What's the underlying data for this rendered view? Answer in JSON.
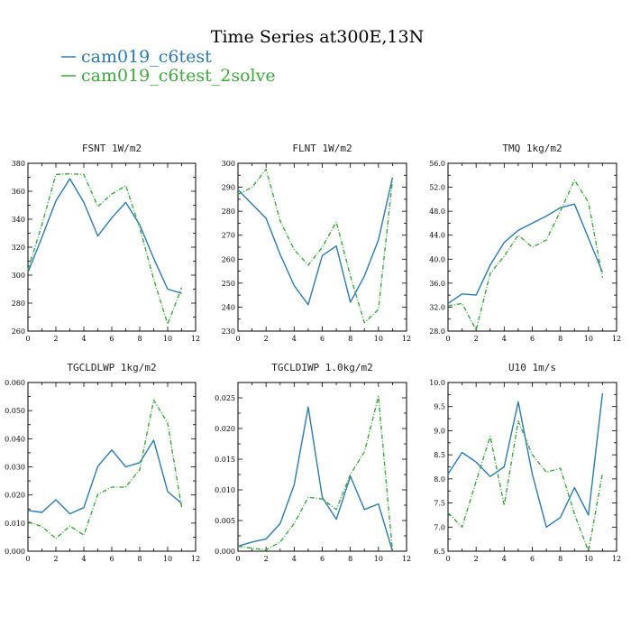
{
  "figure": {
    "title": "Time Series at300E,13N",
    "legend": [
      {
        "name": "cam019_c6test",
        "color": "#2a7ab0",
        "dash": "solid"
      },
      {
        "name": "cam019_c6test_2solve",
        "color": "#3ea83e",
        "dash": "dashdot"
      }
    ]
  },
  "chart_data": [
    {
      "type": "line",
      "title": "FSNT  1W/m2",
      "xlim": [
        0,
        12
      ],
      "ylim": [
        260,
        380
      ],
      "xticks": [
        "0",
        "2",
        "4",
        "6",
        "8",
        "10",
        "12"
      ],
      "yticks": [
        "260",
        "280",
        "300",
        "320",
        "340",
        "360",
        "380"
      ],
      "x": [
        0,
        1,
        2,
        3,
        4,
        5,
        6,
        7,
        8,
        9,
        10,
        11
      ],
      "series": [
        {
          "name": "cam019_c6test",
          "values": [
            302,
            327,
            353,
            369,
            352,
            328,
            341,
            352,
            336,
            312,
            290,
            287
          ]
        },
        {
          "name": "cam019_c6test_2solve",
          "values": [
            304,
            336,
            372,
            372.5,
            372,
            349,
            358,
            364,
            334,
            297,
            265,
            291
          ]
        }
      ]
    },
    {
      "type": "line",
      "title": "FLNT  1W/m2",
      "xlim": [
        0,
        12
      ],
      "ylim": [
        230,
        300
      ],
      "xticks": [
        "0",
        "2",
        "4",
        "6",
        "8",
        "10",
        "12"
      ],
      "yticks": [
        "230",
        "240",
        "250",
        "260",
        "270",
        "280",
        "290",
        "300"
      ],
      "x": [
        0,
        1,
        2,
        3,
        4,
        5,
        6,
        7,
        8,
        9,
        10,
        11
      ],
      "series": [
        {
          "name": "cam019_c6test",
          "values": [
            289,
            283,
            277,
            262,
            249,
            241,
            261.5,
            265.5,
            242,
            253,
            268,
            294
          ]
        },
        {
          "name": "cam019_c6test_2solve",
          "values": [
            287,
            290,
            297.5,
            276,
            264,
            257.5,
            265,
            275.5,
            253,
            233.5,
            239,
            293
          ]
        }
      ]
    },
    {
      "type": "line",
      "title": "TMQ  1kg/m2",
      "xlim": [
        0,
        12
      ],
      "ylim": [
        28,
        56
      ],
      "xticks": [
        "0",
        "2",
        "4",
        "6",
        "8",
        "10",
        "12"
      ],
      "yticks": [
        "28.0",
        "32.0",
        "36.0",
        "40.0",
        "44.0",
        "48.0",
        "52.0",
        "56.0"
      ],
      "x": [
        0,
        1,
        2,
        3,
        4,
        5,
        6,
        7,
        8,
        9,
        10,
        11
      ],
      "series": [
        {
          "name": "cam019_c6test",
          "values": [
            32.6,
            34.2,
            34.0,
            39.0,
            42.8,
            44.8,
            46.0,
            47.2,
            48.6,
            49.2,
            43.5,
            37.8
          ]
        },
        {
          "name": "cam019_c6test_2solve",
          "values": [
            32.2,
            32.6,
            28.2,
            37.6,
            40.5,
            44.0,
            42.0,
            43.2,
            48.0,
            53.2,
            49.5,
            36.9
          ]
        }
      ]
    },
    {
      "type": "line",
      "title": "TGCLDLWP  1kg/m2",
      "xlim": [
        0,
        12
      ],
      "ylim": [
        0,
        0.06
      ],
      "xticks": [
        "0",
        "2",
        "4",
        "6",
        "8",
        "10",
        "12"
      ],
      "yticks": [
        "0.000",
        "0.010",
        "0.020",
        "0.030",
        "0.040",
        "0.050",
        "0.060"
      ],
      "x": [
        0,
        1,
        2,
        3,
        4,
        5,
        6,
        7,
        8,
        9,
        10,
        11
      ],
      "series": [
        {
          "name": "cam019_c6test",
          "values": [
            0.0145,
            0.0138,
            0.0183,
            0.0133,
            0.0155,
            0.0302,
            0.036,
            0.03,
            0.0315,
            0.0395,
            0.0212,
            0.017
          ]
        },
        {
          "name": "cam019_c6test_2solve",
          "values": [
            0.0105,
            0.0088,
            0.0045,
            0.009,
            0.0057,
            0.0202,
            0.0228,
            0.0228,
            0.029,
            0.0538,
            0.0455,
            0.0155
          ]
        }
      ]
    },
    {
      "type": "line",
      "title": "TGCLDIWP  1.0kg/m2",
      "xlim": [
        0,
        12
      ],
      "ylim": [
        0,
        0.0275
      ],
      "xticks": [
        "0",
        "2",
        "4",
        "6",
        "8",
        "10",
        "12"
      ],
      "yticks": [
        "0.000",
        "0.005",
        "0.010",
        "0.015",
        "0.020",
        "0.025"
      ],
      "x": [
        0,
        1,
        2,
        3,
        4,
        5,
        6,
        7,
        8,
        9,
        10,
        11
      ],
      "series": [
        {
          "name": "cam019_c6test",
          "values": [
            0.0008,
            0.0015,
            0.002,
            0.0045,
            0.0108,
            0.0235,
            0.0088,
            0.0052,
            0.0122,
            0.0068,
            0.0077,
            0.0
          ]
        },
        {
          "name": "cam019_c6test_2solve",
          "values": [
            0.0008,
            0.0005,
            0.0002,
            0.0015,
            0.0045,
            0.0088,
            0.0085,
            0.0068,
            0.0125,
            0.0162,
            0.0252,
            0.0
          ]
        }
      ]
    },
    {
      "type": "line",
      "title": "U10  1m/s",
      "xlim": [
        0,
        12
      ],
      "ylim": [
        6.5,
        10.0
      ],
      "xticks": [
        "0",
        "2",
        "4",
        "6",
        "8",
        "10",
        "12"
      ],
      "yticks": [
        "6.5",
        "7.0",
        "7.5",
        "8.0",
        "8.5",
        "9.0",
        "9.5",
        "10.0"
      ],
      "x": [
        0,
        1,
        2,
        3,
        4,
        5,
        6,
        7,
        8,
        9,
        10,
        11
      ],
      "series": [
        {
          "name": "cam019_c6test",
          "values": [
            8.1,
            8.55,
            8.35,
            8.05,
            8.25,
            9.6,
            8.1,
            7.0,
            7.2,
            7.82,
            7.25,
            9.78
          ]
        },
        {
          "name": "cam019_c6test_2solve",
          "values": [
            7.3,
            7.0,
            7.95,
            8.88,
            7.45,
            9.2,
            8.5,
            8.14,
            8.22,
            7.27,
            6.5,
            8.12
          ]
        }
      ]
    }
  ]
}
